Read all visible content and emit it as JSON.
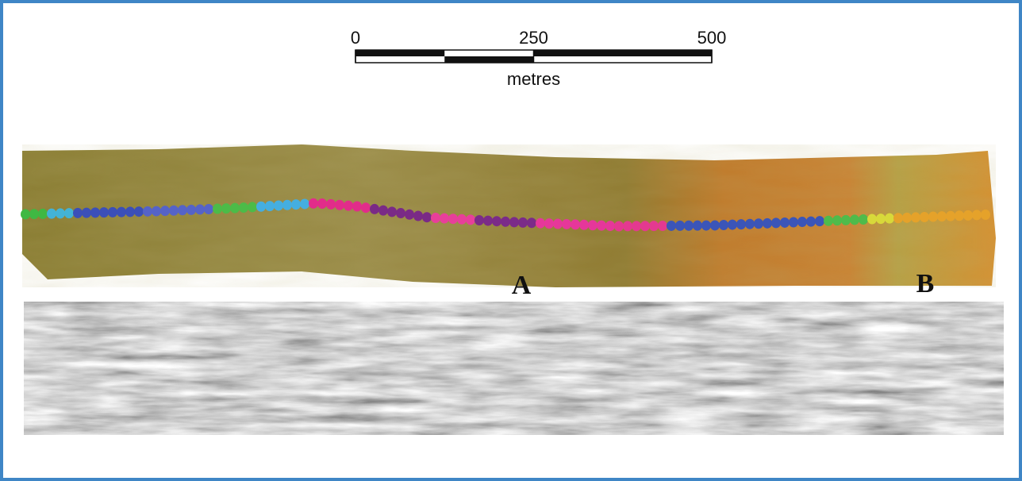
{
  "scale_bar": {
    "ticks": [
      0,
      250,
      500
    ],
    "unit": "metres"
  },
  "markers": {
    "a": "A",
    "b": "B"
  }
}
